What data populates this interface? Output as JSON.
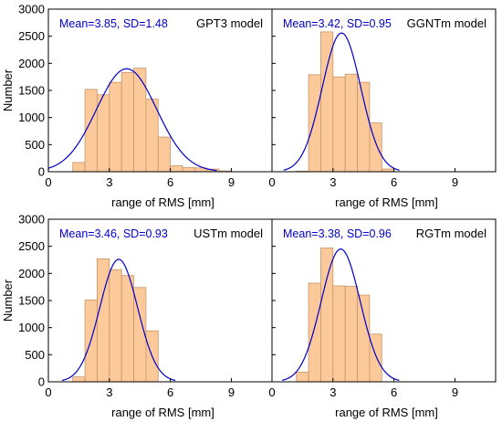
{
  "colors": {
    "bar_fill": "#fbc99a",
    "bar_stroke": "#c8946a",
    "curve": "#0000cc",
    "stats_text": "#0000cc",
    "axis": "#000000"
  },
  "axes": {
    "ylabel": "Number",
    "xlabel": "range of RMS [mm]",
    "y_ticks": [
      "0",
      "500",
      "1000",
      "1500",
      "2000",
      "2500",
      "3000"
    ],
    "x_ticks": [
      "0",
      "3",
      "6",
      "9"
    ],
    "xlim": [
      0,
      11
    ],
    "ylim": [
      0,
      3000
    ]
  },
  "chart_data": [
    {
      "type": "bar",
      "model": "GPT3 model",
      "stats": "Mean=3.85, SD=1.48",
      "mean": 3.85,
      "sd": 1.48,
      "bin_width": 0.6,
      "bin_starts": [
        1.2,
        1.8,
        2.4,
        3.0,
        3.6,
        4.2,
        4.8,
        5.4,
        6.0,
        6.6,
        7.2,
        7.8,
        8.4
      ],
      "values": [
        170,
        1520,
        1420,
        1650,
        1830,
        1910,
        1340,
        640,
        110,
        75,
        70,
        50,
        15
      ],
      "curve_peak": 1900,
      "xlim": [
        0,
        11
      ],
      "ylim": [
        0,
        3000
      ]
    },
    {
      "type": "bar",
      "model": "GGNTm model",
      "stats": "Mean=3.42, SD=0.95",
      "mean": 3.42,
      "sd": 0.95,
      "bin_width": 0.6,
      "bin_starts": [
        1.2,
        1.8,
        2.4,
        3.0,
        3.6,
        4.2,
        4.8,
        5.4
      ],
      "values": [
        10,
        1790,
        2580,
        1750,
        1800,
        1650,
        900,
        50
      ],
      "curve_peak": 2560,
      "xlim": [
        0,
        11
      ],
      "ylim": [
        0,
        3000
      ]
    },
    {
      "type": "bar",
      "model": "USTm model",
      "stats": "Mean=3.46, SD=0.93",
      "mean": 3.46,
      "sd": 0.93,
      "bin_width": 0.6,
      "bin_starts": [
        1.2,
        1.8,
        2.4,
        3.0,
        3.6,
        4.2,
        4.8
      ],
      "values": [
        90,
        1510,
        2270,
        2070,
        1960,
        1740,
        940
      ],
      "curve_peak": 2260,
      "xlim": [
        0,
        11
      ],
      "ylim": [
        0,
        3000
      ]
    },
    {
      "type": "bar",
      "model": "RGTm model",
      "stats": "Mean=3.38, SD=0.96",
      "mean": 3.38,
      "sd": 0.96,
      "bin_width": 0.6,
      "bin_starts": [
        1.2,
        1.8,
        2.4,
        3.0,
        3.6,
        4.2,
        4.8
      ],
      "values": [
        180,
        1820,
        2470,
        1770,
        1760,
        1600,
        880
      ],
      "curve_peak": 2450,
      "xlim": [
        0,
        11
      ],
      "ylim": [
        0,
        3000
      ]
    }
  ]
}
